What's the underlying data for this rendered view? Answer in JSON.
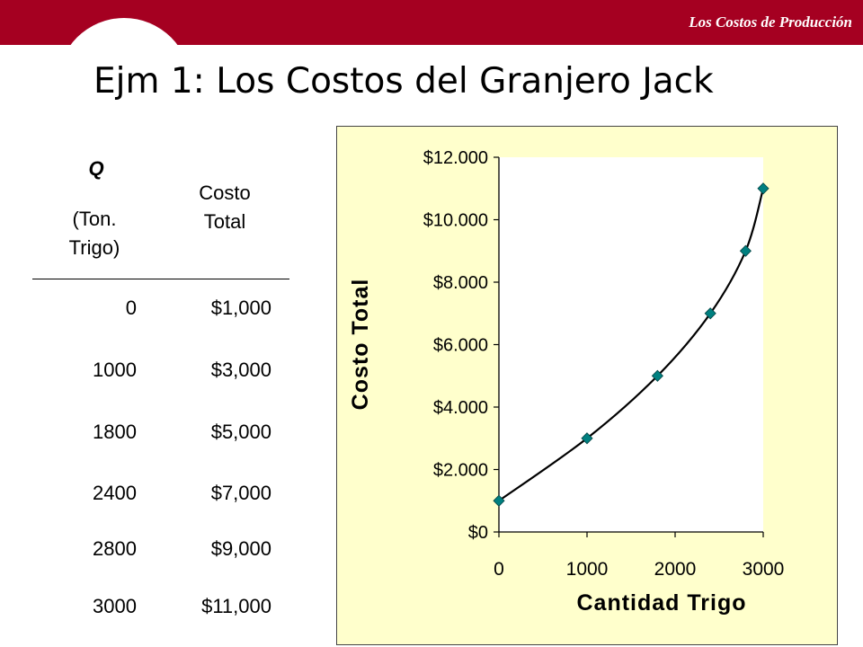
{
  "header": {
    "brand": "Los Costos de Producción"
  },
  "slide_title": "Ejm 1: Los Costos del Granjero Jack",
  "table": {
    "q_header": "Q",
    "q_sub": [
      "(Ton.",
      "Trigo)"
    ],
    "cost_header": [
      "Costo",
      "Total"
    ],
    "rows": [
      {
        "q": "0",
        "cost": "$1,000"
      },
      {
        "q": "1000",
        "cost": "$3,000"
      },
      {
        "q": "1800",
        "cost": "$5,000"
      },
      {
        "q": "2400",
        "cost": "$7,000"
      },
      {
        "q": "2800",
        "cost": "$9,000"
      },
      {
        "q": "3000",
        "cost": "$11,000"
      }
    ]
  },
  "chart_data": {
    "type": "line",
    "x": [
      0,
      1000,
      1800,
      2400,
      2800,
      3000
    ],
    "series": [
      {
        "values": [
          1000,
          3000,
          5000,
          7000,
          9000,
          11000
        ]
      }
    ],
    "xlabel": "Cantidad Trigo",
    "ylabel": "Costo Total",
    "xlim": [
      0,
      3000
    ],
    "ylim": [
      0,
      12000
    ],
    "x_ticks": [
      0,
      1000,
      2000,
      3000
    ],
    "x_tick_labels": [
      "0",
      "1000",
      "2000",
      "3000"
    ],
    "y_ticks": [
      0,
      2000,
      4000,
      6000,
      8000,
      10000,
      12000
    ],
    "y_tick_labels": [
      "$0",
      "$2.000",
      "$4.000",
      "$6.000",
      "$8.000",
      "$10.000",
      "$12.000"
    ],
    "marker": "diamond",
    "marker_color": "#008080",
    "line_color": "#000000",
    "plot_background": "#ffffcc",
    "grid": false,
    "legend": false
  }
}
